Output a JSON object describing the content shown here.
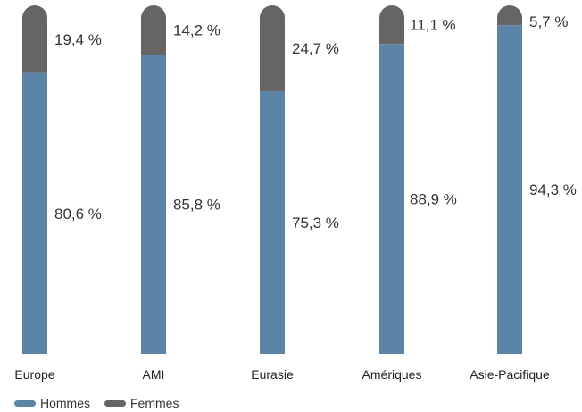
{
  "chart_data": {
    "type": "bar",
    "stacked": true,
    "percent": true,
    "categories": [
      "Europe",
      "AMI",
      "Eurasie",
      "Amériques",
      "Asie-Pacifique"
    ],
    "series": [
      {
        "name": "Hommes",
        "color": "#5b84a6",
        "values": [
          80.6,
          85.8,
          75.3,
          88.9,
          94.3
        ],
        "labels": [
          "80,6 %",
          "85,8 %",
          "75,3 %",
          "88,9 %",
          "94,3 %"
        ]
      },
      {
        "name": "Femmes",
        "color": "#656565",
        "values": [
          19.4,
          14.2,
          24.7,
          11.1,
          5.7
        ],
        "labels": [
          "19,4 %",
          "14,2 %",
          "24,7 %",
          "11,1 %",
          "5,7 %"
        ]
      }
    ],
    "ylim": [
      0,
      100
    ],
    "grid": false,
    "legend_position": "bottom-left"
  }
}
